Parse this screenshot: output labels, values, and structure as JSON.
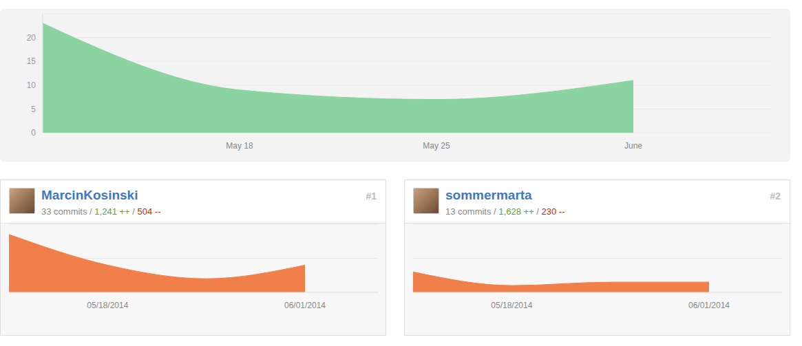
{
  "chart_data": {
    "type": "area",
    "categories": [
      null,
      "May 18",
      "May 25",
      "June"
    ],
    "values": [
      23,
      9,
      7,
      11
    ],
    "color": "#8cd3a2",
    "ylim": [
      0,
      25
    ],
    "yticks": [
      0,
      5,
      10,
      15,
      20
    ],
    "grid": true
  },
  "separator": "/",
  "contributors": [
    {
      "rank": "#1",
      "name": "MarcinKosinski",
      "commits": "33 commits",
      "additions": "1,241 ++",
      "deletions": "504 --",
      "chart_data": {
        "type": "area",
        "categories": [
          null,
          "05/18/2014",
          null,
          "06/01/2014"
        ],
        "values": [
          17,
          8,
          4,
          8
        ],
        "color": "#f17f49",
        "ylim": [
          0,
          20
        ],
        "yticks": [
          10
        ],
        "grid": true
      }
    },
    {
      "rank": "#2",
      "name": "sommermarta",
      "commits": "13 commits",
      "additions": "1,628 ++",
      "deletions": "230 --",
      "chart_data": {
        "type": "area",
        "categories": [
          null,
          "05/18/2014",
          null,
          "06/01/2014"
        ],
        "values": [
          6,
          2,
          3,
          3
        ],
        "color": "#f17f49",
        "ylim": [
          0,
          20
        ],
        "yticks": [
          10
        ],
        "grid": true
      }
    }
  ]
}
